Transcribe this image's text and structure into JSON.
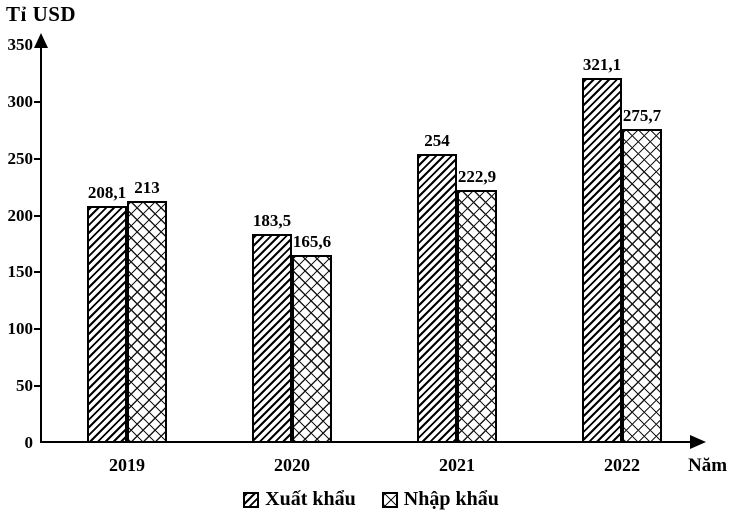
{
  "axis": {
    "y_title": "Tỉ USD",
    "x_title": "Năm"
  },
  "chart_data": {
    "type": "bar",
    "title": "",
    "categories": [
      "2019",
      "2020",
      "2021",
      "2022"
    ],
    "series": [
      {
        "name": "Xuất khẩu",
        "pattern": "diagonal-hatch",
        "values": [
          208.1,
          183.5,
          254,
          321.1
        ],
        "value_labels": [
          "208,1",
          "183,5",
          "254",
          "321,1"
        ]
      },
      {
        "name": "Nhập khẩu",
        "pattern": "diamond-crosshatch",
        "values": [
          213,
          165.6,
          222.9,
          275.7
        ],
        "value_labels": [
          "213",
          "165,6",
          "222,9",
          "275,7"
        ]
      }
    ],
    "xlabel": "Năm",
    "ylabel": "Tỉ USD",
    "ylim": [
      0,
      350
    ],
    "yticks": [
      0,
      50,
      100,
      150,
      200,
      250,
      300,
      350
    ],
    "grid": false,
    "legend_position": "bottom-center",
    "bar_outline_color": "#000000",
    "background_color": "#ffffff",
    "text_color": "#000000"
  }
}
